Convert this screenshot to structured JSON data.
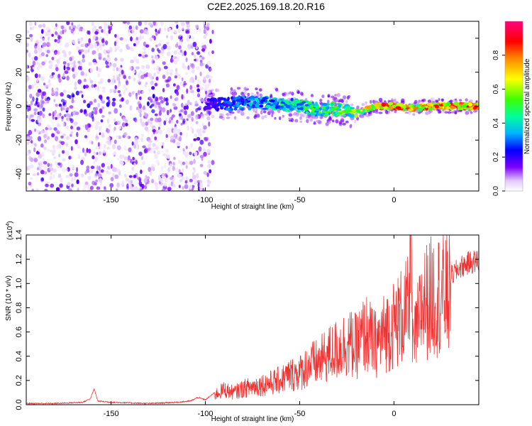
{
  "figure": {
    "title": "C2E2.2025.169.18.20.R16"
  },
  "chart_data": [
    {
      "type": "heatmap",
      "xlabel": "Height of straight line (km)",
      "ylabel": "Frequency (Hz)",
      "xlim": [
        -195,
        45
      ],
      "ylim": [
        -50,
        50
      ],
      "xticks": [
        -150,
        -100,
        -50,
        0
      ],
      "yticks": [
        -40,
        -20,
        0,
        20,
        40
      ],
      "grid": false,
      "colorbar": {
        "label": "Normalized spectral amplitude",
        "range": [
          0.0,
          1.0
        ],
        "ticks": [
          0.0,
          0.2,
          0.4,
          0.6,
          0.8
        ],
        "colors": [
          "#ffffff",
          "#7f00ff",
          "#0000ff",
          "#00c0ff",
          "#00ff80",
          "#80ff00",
          "#ffff00",
          "#ff8000",
          "#ff0000",
          "#ff0080"
        ]
      },
      "ridge": {
        "x": [
          -100,
          -90,
          -80,
          -70,
          -60,
          -50,
          -40,
          -30,
          -20,
          -10,
          0,
          10,
          20,
          30,
          45
        ],
        "frequency": [
          2,
          1,
          2,
          2,
          1,
          0,
          -2,
          -2,
          -4,
          0,
          0,
          -1,
          0,
          0,
          0
        ],
        "amplitude": [
          0.2,
          0.3,
          0.35,
          0.4,
          0.45,
          0.5,
          0.55,
          0.6,
          0.6,
          0.85,
          0.9,
          0.8,
          0.9,
          0.95,
          0.95
        ]
      }
    },
    {
      "type": "line",
      "xlabel": "Height of straight line (km)",
      "ylabel": "SNR (10 * v/v)",
      "scale_label": "(x10",
      "scale_exponent": "4",
      "scale_close": ")",
      "xlim": [
        -195,
        45
      ],
      "ylim": [
        0.0,
        1.4
      ],
      "xticks": [
        -150,
        -100,
        -50,
        0
      ],
      "yticks": [
        0.0,
        0.2,
        0.4,
        0.6,
        0.8,
        1.0,
        1.2,
        1.4
      ],
      "ytick_labels": [
        "0.0",
        "0.2",
        "0.4",
        "0.6",
        "0.8",
        "1.0",
        "1.2",
        "1.4"
      ],
      "grid": false,
      "series": [
        {
          "color": "#ee3333",
          "x": [
            -195,
            -180,
            -165,
            -161,
            -159,
            -157,
            -150,
            -130,
            -115,
            -108,
            -104,
            -100,
            -95,
            -90,
            -85,
            -80,
            -75,
            -70,
            -65,
            -60,
            -55,
            -50,
            -45,
            -40,
            -35,
            -30,
            -25,
            -20,
            -15,
            -10,
            -5,
            0,
            5,
            8,
            9,
            10,
            15,
            20,
            25,
            30,
            35,
            40,
            45
          ],
          "y": [
            0.01,
            0.01,
            0.02,
            0.05,
            0.13,
            0.03,
            0.02,
            0.01,
            0.02,
            0.03,
            0.06,
            0.04,
            0.1,
            0.15,
            0.12,
            0.16,
            0.18,
            0.2,
            0.22,
            0.25,
            0.3,
            0.32,
            0.4,
            0.42,
            0.5,
            0.55,
            0.62,
            0.58,
            0.72,
            0.6,
            0.72,
            0.8,
            0.9,
            0.95,
            1.4,
            0.55,
            1.0,
            1.08,
            1.12,
            1.1,
            1.18,
            1.22,
            1.24
          ]
        }
      ]
    }
  ]
}
